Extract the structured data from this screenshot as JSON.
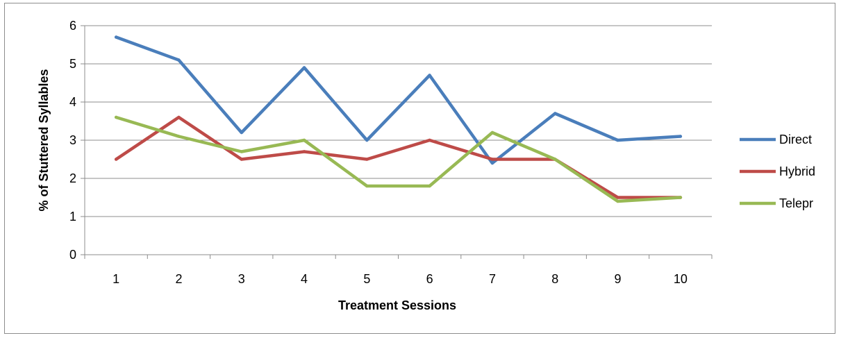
{
  "chart_data": {
    "type": "line",
    "xlabel": "Treatment Sessions",
    "ylabel": "% of Stuttered Syllables",
    "categories": [
      "1",
      "2",
      "3",
      "4",
      "5",
      "6",
      "7",
      "8",
      "9",
      "10"
    ],
    "ylim": [
      0,
      6
    ],
    "yticks": [
      "0",
      "1",
      "2",
      "3",
      "4",
      "5",
      "6"
    ],
    "grid": "horizontal",
    "legend_position": "right",
    "series": [
      {
        "name": "Direct",
        "color": "#4a7ebb",
        "values": [
          5.7,
          5.1,
          3.2,
          4.9,
          3.0,
          4.7,
          2.4,
          3.7,
          3.0,
          3.1
        ]
      },
      {
        "name": "Hybrid",
        "color": "#be4b48",
        "values": [
          2.5,
          3.6,
          2.5,
          2.7,
          2.5,
          3.0,
          2.5,
          2.5,
          1.5,
          1.5
        ]
      },
      {
        "name": "Telepr",
        "color": "#98b954",
        "values": [
          3.6,
          3.1,
          2.7,
          3.0,
          1.8,
          1.8,
          3.2,
          2.5,
          1.4,
          1.5
        ]
      }
    ]
  }
}
